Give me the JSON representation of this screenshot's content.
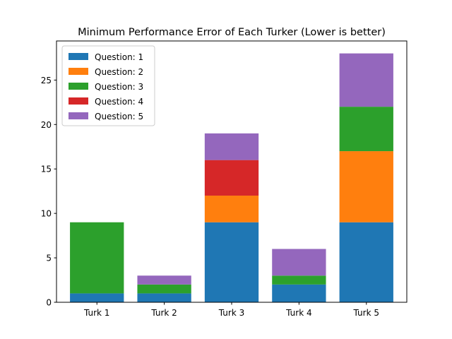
{
  "chart_data": {
    "type": "bar",
    "stacked": true,
    "title": "Minimum Performance Error of Each Turker (Lower is better)",
    "xlabel": "",
    "ylabel": "",
    "categories": [
      "Turk 1",
      "Turk 2",
      "Turk 3",
      "Turk 4",
      "Turk 5"
    ],
    "series": [
      {
        "name": "Question: 1",
        "color": "#1f77b4",
        "values": [
          1,
          1,
          9,
          2,
          9
        ]
      },
      {
        "name": "Question: 2",
        "color": "#ff7f0e",
        "values": [
          0,
          0,
          3,
          0,
          8
        ]
      },
      {
        "name": "Question: 3",
        "color": "#2ca02c",
        "values": [
          8,
          1,
          0,
          1,
          5
        ]
      },
      {
        "name": "Question: 4",
        "color": "#d62728",
        "values": [
          0,
          0,
          4,
          0,
          0
        ]
      },
      {
        "name": "Question: 5",
        "color": "#9467bd",
        "values": [
          0,
          1,
          3,
          3,
          6
        ]
      }
    ],
    "ylim": [
      0,
      29.4
    ],
    "yticks": [
      0,
      5,
      10,
      15,
      20,
      25
    ],
    "grid": false,
    "legend_position": "top-left"
  }
}
